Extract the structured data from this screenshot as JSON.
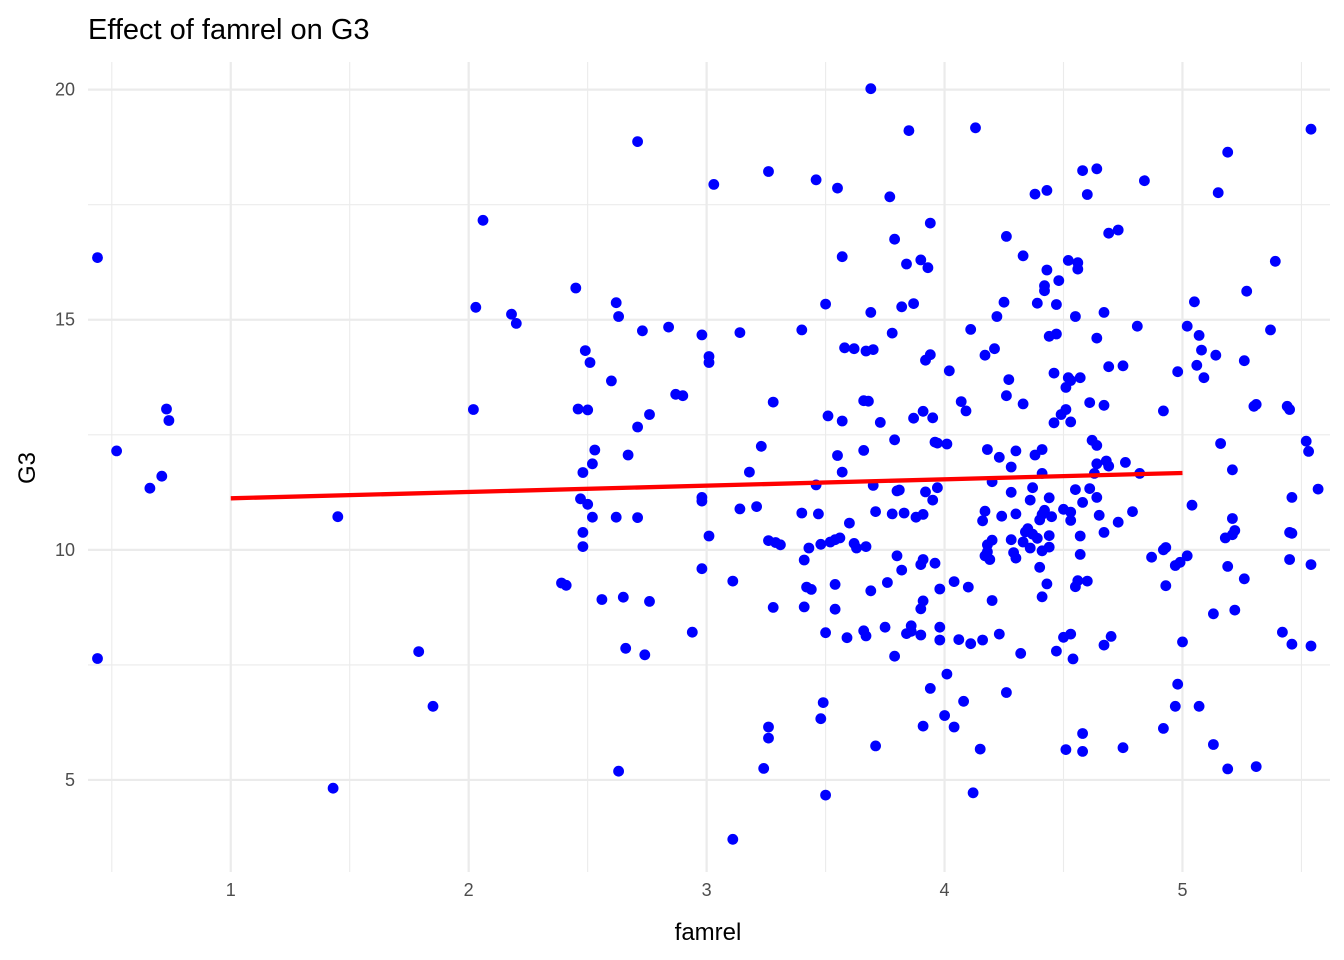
{
  "chart_data": {
    "type": "scatter",
    "title": "Effect of famrel on G3",
    "xlabel": "famrel",
    "ylabel": "G3",
    "xlim": [
      0.4,
      5.62
    ],
    "ylim": [
      3.0,
      20.6
    ],
    "x_ticks": [
      1,
      2,
      3,
      4,
      5
    ],
    "y_ticks": [
      5,
      10,
      15,
      20
    ],
    "grid": true,
    "colors": {
      "points": "#0000ff",
      "trend": "#ff0000"
    },
    "trend_line": {
      "x": [
        1,
        5
      ],
      "y": [
        11.12,
        11.67
      ]
    },
    "points": [
      [
        0.44,
        16.35
      ],
      [
        0.44,
        7.64
      ],
      [
        0.52,
        12.15
      ],
      [
        0.66,
        11.34
      ],
      [
        0.71,
        11.6
      ],
      [
        0.73,
        13.06
      ],
      [
        0.74,
        12.81
      ],
      [
        1.43,
        4.82
      ],
      [
        1.45,
        10.72
      ],
      [
        1.79,
        7.79
      ],
      [
        1.85,
        6.6
      ],
      [
        2.02,
        13.05
      ],
      [
        2.03,
        15.27
      ],
      [
        2.06,
        17.16
      ],
      [
        2.18,
        15.12
      ],
      [
        2.2,
        14.92
      ],
      [
        2.39,
        9.28
      ],
      [
        2.41,
        9.23
      ],
      [
        2.45,
        15.69
      ],
      [
        2.46,
        13.06
      ],
      [
        2.47,
        11.11
      ],
      [
        2.48,
        10.07
      ],
      [
        2.48,
        10.38
      ],
      [
        2.48,
        11.68
      ],
      [
        2.49,
        14.33
      ],
      [
        2.5,
        13.04
      ],
      [
        2.5,
        10.99
      ],
      [
        2.51,
        14.07
      ],
      [
        2.52,
        11.87
      ],
      [
        2.52,
        10.71
      ],
      [
        2.53,
        12.17
      ],
      [
        2.56,
        8.92
      ],
      [
        2.6,
        13.67
      ],
      [
        2.62,
        15.37
      ],
      [
        2.62,
        10.71
      ],
      [
        2.63,
        15.07
      ],
      [
        2.63,
        5.19
      ],
      [
        2.65,
        8.97
      ],
      [
        2.66,
        7.86
      ],
      [
        2.67,
        12.06
      ],
      [
        2.71,
        18.87
      ],
      [
        2.71,
        12.67
      ],
      [
        2.71,
        10.7
      ],
      [
        2.73,
        14.76
      ],
      [
        2.74,
        7.72
      ],
      [
        2.76,
        8.88
      ],
      [
        2.76,
        12.94
      ],
      [
        2.84,
        14.84
      ],
      [
        2.87,
        13.38
      ],
      [
        2.9,
        13.35
      ],
      [
        2.94,
        8.21
      ],
      [
        2.98,
        11.14
      ],
      [
        2.98,
        11.06
      ],
      [
        2.98,
        14.67
      ],
      [
        2.98,
        9.59
      ],
      [
        3.01,
        14.07
      ],
      [
        3.01,
        14.2
      ],
      [
        3.01,
        10.3
      ],
      [
        3.03,
        17.94
      ],
      [
        3.11,
        9.32
      ],
      [
        3.11,
        3.71
      ],
      [
        3.14,
        14.72
      ],
      [
        3.14,
        10.89
      ],
      [
        3.18,
        11.69
      ],
      [
        3.21,
        10.94
      ],
      [
        3.23,
        12.25
      ],
      [
        3.24,
        5.25
      ],
      [
        3.26,
        10.2
      ],
      [
        3.26,
        18.22
      ],
      [
        3.26,
        5.91
      ],
      [
        3.26,
        6.15
      ],
      [
        3.28,
        8.75
      ],
      [
        3.28,
        13.21
      ],
      [
        3.29,
        10.16
      ],
      [
        3.31,
        10.11
      ],
      [
        3.4,
        14.78
      ],
      [
        3.4,
        10.8
      ],
      [
        3.41,
        8.76
      ],
      [
        3.41,
        9.78
      ],
      [
        3.42,
        9.19
      ],
      [
        3.43,
        10.04
      ],
      [
        3.44,
        9.14
      ],
      [
        3.46,
        11.41
      ],
      [
        3.46,
        18.04
      ],
      [
        3.47,
        10.78
      ],
      [
        3.48,
        6.33
      ],
      [
        3.48,
        10.12
      ],
      [
        3.49,
        6.68
      ],
      [
        3.5,
        15.34
      ],
      [
        3.5,
        4.67
      ],
      [
        3.5,
        8.2
      ],
      [
        3.51,
        12.91
      ],
      [
        3.52,
        10.17
      ],
      [
        3.54,
        8.71
      ],
      [
        3.54,
        10.22
      ],
      [
        3.54,
        9.25
      ],
      [
        3.55,
        12.05
      ],
      [
        3.55,
        17.86
      ],
      [
        3.56,
        10.26
      ],
      [
        3.57,
        16.37
      ],
      [
        3.57,
        11.69
      ],
      [
        3.57,
        12.8
      ],
      [
        3.58,
        14.39
      ],
      [
        3.59,
        8.09
      ],
      [
        3.6,
        10.58
      ],
      [
        3.62,
        14.37
      ],
      [
        3.62,
        10.14
      ],
      [
        3.63,
        10.04
      ],
      [
        3.66,
        13.24
      ],
      [
        3.66,
        12.16
      ],
      [
        3.66,
        8.24
      ],
      [
        3.67,
        14.32
      ],
      [
        3.67,
        8.13
      ],
      [
        3.67,
        10.07
      ],
      [
        3.68,
        13.23
      ],
      [
        3.69,
        15.16
      ],
      [
        3.69,
        20.02
      ],
      [
        3.69,
        9.11
      ],
      [
        3.7,
        14.35
      ],
      [
        3.7,
        11.4
      ],
      [
        3.71,
        5.74
      ],
      [
        3.71,
        10.83
      ],
      [
        3.73,
        12.77
      ],
      [
        3.75,
        8.32
      ],
      [
        3.76,
        9.29
      ],
      [
        3.77,
        17.67
      ],
      [
        3.78,
        14.71
      ],
      [
        3.78,
        10.78
      ],
      [
        3.79,
        16.75
      ],
      [
        3.79,
        12.39
      ],
      [
        3.79,
        7.69
      ],
      [
        3.8,
        11.28
      ],
      [
        3.8,
        9.87
      ],
      [
        3.81,
        11.3
      ],
      [
        3.82,
        15.28
      ],
      [
        3.82,
        9.56
      ],
      [
        3.83,
        10.8
      ],
      [
        3.84,
        8.18
      ],
      [
        3.84,
        16.21
      ],
      [
        3.85,
        19.11
      ],
      [
        3.86,
        8.35
      ],
      [
        3.86,
        8.23
      ],
      [
        3.87,
        12.86
      ],
      [
        3.87,
        15.35
      ],
      [
        3.88,
        10.71
      ],
      [
        3.9,
        16.3
      ],
      [
        3.9,
        8.15
      ],
      [
        3.9,
        9.68
      ],
      [
        3.9,
        8.72
      ],
      [
        3.91,
        9.79
      ],
      [
        3.91,
        8.89
      ],
      [
        3.91,
        13.01
      ],
      [
        3.91,
        6.17
      ],
      [
        3.91,
        10.77
      ],
      [
        3.92,
        14.12
      ],
      [
        3.92,
        11.26
      ],
      [
        3.93,
        16.13
      ],
      [
        3.94,
        6.99
      ],
      [
        3.94,
        14.24
      ],
      [
        3.94,
        17.1
      ],
      [
        3.95,
        12.87
      ],
      [
        3.95,
        11.08
      ],
      [
        3.96,
        12.34
      ],
      [
        3.96,
        9.71
      ],
      [
        3.97,
        12.32
      ],
      [
        3.97,
        11.35
      ],
      [
        3.98,
        8.32
      ],
      [
        3.98,
        9.15
      ],
      [
        3.98,
        8.04
      ],
      [
        4.0,
        6.4
      ],
      [
        4.01,
        12.3
      ],
      [
        4.01,
        7.3
      ],
      [
        4.02,
        13.89
      ],
      [
        4.04,
        6.15
      ],
      [
        4.04,
        9.31
      ],
      [
        4.06,
        8.05
      ],
      [
        4.07,
        13.22
      ],
      [
        4.08,
        6.71
      ],
      [
        4.09,
        13.02
      ],
      [
        4.1,
        9.19
      ],
      [
        4.11,
        14.79
      ],
      [
        4.11,
        7.96
      ],
      [
        4.12,
        4.72
      ],
      [
        4.13,
        19.17
      ],
      [
        4.15,
        5.67
      ],
      [
        4.16,
        8.04
      ],
      [
        4.16,
        10.63
      ],
      [
        4.17,
        14.23
      ],
      [
        4.17,
        10.84
      ],
      [
        4.17,
        9.87
      ],
      [
        4.18,
        10.11
      ],
      [
        4.18,
        12.18
      ],
      [
        4.18,
        9.96
      ],
      [
        4.19,
        9.79
      ],
      [
        4.2,
        10.21
      ],
      [
        4.2,
        11.48
      ],
      [
        4.2,
        8.9
      ],
      [
        4.21,
        14.37
      ],
      [
        4.22,
        15.07
      ],
      [
        4.23,
        8.17
      ],
      [
        4.23,
        12.01
      ],
      [
        4.24,
        10.73
      ],
      [
        4.25,
        15.38
      ],
      [
        4.26,
        13.35
      ],
      [
        4.26,
        16.81
      ],
      [
        4.26,
        6.9
      ],
      [
        4.27,
        13.7
      ],
      [
        4.28,
        11.8
      ],
      [
        4.28,
        11.25
      ],
      [
        4.28,
        10.22
      ],
      [
        4.29,
        9.94
      ],
      [
        4.3,
        9.82
      ],
      [
        4.3,
        10.78
      ],
      [
        4.3,
        12.15
      ],
      [
        4.32,
        7.75
      ],
      [
        4.33,
        16.39
      ],
      [
        4.33,
        13.17
      ],
      [
        4.33,
        10.17
      ],
      [
        4.34,
        10.39
      ],
      [
        4.35,
        10.46
      ],
      [
        4.36,
        11.08
      ],
      [
        4.36,
        10.04
      ],
      [
        4.37,
        11.35
      ],
      [
        4.37,
        10.34
      ],
      [
        4.38,
        17.73
      ],
      [
        4.38,
        12.06
      ],
      [
        4.39,
        15.36
      ],
      [
        4.39,
        10.25
      ],
      [
        4.4,
        10.65
      ],
      [
        4.4,
        9.62
      ],
      [
        4.41,
        9.98
      ],
      [
        4.41,
        10.77
      ],
      [
        4.41,
        11.66
      ],
      [
        4.41,
        12.18
      ],
      [
        4.41,
        8.98
      ],
      [
        4.42,
        10.86
      ],
      [
        4.42,
        15.63
      ],
      [
        4.42,
        15.74
      ],
      [
        4.43,
        17.81
      ],
      [
        4.43,
        9.26
      ],
      [
        4.43,
        16.08
      ],
      [
        4.44,
        10.31
      ],
      [
        4.44,
        11.13
      ],
      [
        4.44,
        10.06
      ],
      [
        4.44,
        14.64
      ],
      [
        4.45,
        10.72
      ],
      [
        4.46,
        13.84
      ],
      [
        4.46,
        12.76
      ],
      [
        4.47,
        15.33
      ],
      [
        4.47,
        7.8
      ],
      [
        4.47,
        14.69
      ],
      [
        4.48,
        15.85
      ],
      [
        4.49,
        12.94
      ],
      [
        4.5,
        10.88
      ],
      [
        4.5,
        8.1
      ],
      [
        4.51,
        13.53
      ],
      [
        4.51,
        13.05
      ],
      [
        4.51,
        5.66
      ],
      [
        4.52,
        13.74
      ],
      [
        4.52,
        16.29
      ],
      [
        4.53,
        10.64
      ],
      [
        4.53,
        8.17
      ],
      [
        4.53,
        13.68
      ],
      [
        4.53,
        12.78
      ],
      [
        4.53,
        10.82
      ],
      [
        4.54,
        7.63
      ],
      [
        4.55,
        11.31
      ],
      [
        4.55,
        9.2
      ],
      [
        4.55,
        15.07
      ],
      [
        4.56,
        16.1
      ],
      [
        4.56,
        9.33
      ],
      [
        4.56,
        16.24
      ],
      [
        4.57,
        13.74
      ],
      [
        4.57,
        10.3
      ],
      [
        4.57,
        9.9
      ],
      [
        4.58,
        6.01
      ],
      [
        4.58,
        18.24
      ],
      [
        4.58,
        5.62
      ],
      [
        4.58,
        11.03
      ],
      [
        4.6,
        17.72
      ],
      [
        4.6,
        9.32
      ],
      [
        4.61,
        13.2
      ],
      [
        4.61,
        11.33
      ],
      [
        4.62,
        12.38
      ],
      [
        4.63,
        11.66
      ],
      [
        4.64,
        18.28
      ],
      [
        4.64,
        14.6
      ],
      [
        4.64,
        11.87
      ],
      [
        4.64,
        11.14
      ],
      [
        4.64,
        12.27
      ],
      [
        4.65,
        10.75
      ],
      [
        4.67,
        10.38
      ],
      [
        4.67,
        13.14
      ],
      [
        4.67,
        7.93
      ],
      [
        4.67,
        15.16
      ],
      [
        4.68,
        11.93
      ],
      [
        4.69,
        11.82
      ],
      [
        4.69,
        13.98
      ],
      [
        4.69,
        16.88
      ],
      [
        4.7,
        8.12
      ],
      [
        4.73,
        10.6
      ],
      [
        4.73,
        16.95
      ],
      [
        4.75,
        5.7
      ],
      [
        4.75,
        14.0
      ],
      [
        4.76,
        11.9
      ],
      [
        4.79,
        10.83
      ],
      [
        4.81,
        14.86
      ],
      [
        4.82,
        11.66
      ],
      [
        4.84,
        18.02
      ],
      [
        4.87,
        9.84
      ],
      [
        4.92,
        10.0
      ],
      [
        4.92,
        13.02
      ],
      [
        4.92,
        6.12
      ],
      [
        4.93,
        9.22
      ],
      [
        4.93,
        10.05
      ],
      [
        4.97,
        9.66
      ],
      [
        4.97,
        6.6
      ],
      [
        4.98,
        7.08
      ],
      [
        4.98,
        13.87
      ],
      [
        4.99,
        9.73
      ],
      [
        5.0,
        8.0
      ],
      [
        5.02,
        14.86
      ],
      [
        5.02,
        9.87
      ],
      [
        5.04,
        10.97
      ],
      [
        5.05,
        15.39
      ],
      [
        5.06,
        14.01
      ],
      [
        5.07,
        6.6
      ],
      [
        5.07,
        14.66
      ],
      [
        5.08,
        14.34
      ],
      [
        5.09,
        13.74
      ],
      [
        5.13,
        8.61
      ],
      [
        5.13,
        5.77
      ],
      [
        5.14,
        14.23
      ],
      [
        5.15,
        17.76
      ],
      [
        5.16,
        12.31
      ],
      [
        5.18,
        10.26
      ],
      [
        5.19,
        9.64
      ],
      [
        5.19,
        18.64
      ],
      [
        5.19,
        5.24
      ],
      [
        5.21,
        10.33
      ],
      [
        5.21,
        11.74
      ],
      [
        5.21,
        10.68
      ],
      [
        5.22,
        10.42
      ],
      [
        5.22,
        8.69
      ],
      [
        5.26,
        14.11
      ],
      [
        5.26,
        9.37
      ],
      [
        5.27,
        15.62
      ],
      [
        5.3,
        13.12
      ],
      [
        5.31,
        13.16
      ],
      [
        5.31,
        5.29
      ],
      [
        5.37,
        14.78
      ],
      [
        5.39,
        16.27
      ],
      [
        5.42,
        8.21
      ],
      [
        5.44,
        13.12
      ],
      [
        5.45,
        13.05
      ],
      [
        5.45,
        10.38
      ],
      [
        5.45,
        9.79
      ],
      [
        5.46,
        7.95
      ],
      [
        5.46,
        10.36
      ],
      [
        5.46,
        11.14
      ],
      [
        5.52,
        12.36
      ],
      [
        5.53,
        12.14
      ],
      [
        5.54,
        9.68
      ],
      [
        5.54,
        19.14
      ],
      [
        5.54,
        7.91
      ],
      [
        5.57,
        11.32
      ]
    ]
  }
}
